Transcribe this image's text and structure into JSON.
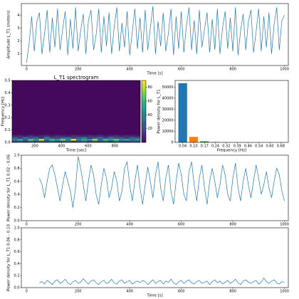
{
  "chart_data": [
    {
      "type": "line",
      "ylabel": "Amplitude L_T1 (meters)",
      "xlabel": "Time [s]",
      "color": "#1f77b4",
      "xlim": [
        -20,
        1015
      ],
      "ylim": [
        0.1,
        4.9
      ],
      "xticks": [
        0,
        200,
        400,
        600,
        800,
        1000
      ],
      "yticks": [
        1,
        2,
        3,
        4
      ],
      "x": [
        0,
        10,
        20,
        30,
        40,
        50,
        60,
        70,
        80,
        90,
        100,
        110,
        120,
        130,
        140,
        150,
        160,
        170,
        180,
        190,
        200,
        210,
        220,
        230,
        240,
        250,
        260,
        270,
        280,
        290,
        300,
        310,
        320,
        330,
        340,
        350,
        360,
        370,
        380,
        390,
        400,
        410,
        420,
        430,
        440,
        450,
        460,
        470,
        480,
        490,
        500,
        510,
        520,
        530,
        540,
        550,
        560,
        570,
        580,
        590,
        600,
        610,
        620,
        630,
        640,
        650,
        660,
        670,
        680,
        690,
        700,
        710,
        720,
        730,
        740,
        750,
        760,
        770,
        780,
        790,
        800,
        810,
        820,
        830,
        840,
        850,
        860,
        870,
        880,
        890,
        900,
        910,
        920,
        930,
        940,
        950,
        960,
        970,
        980,
        990,
        1000
      ],
      "values": [
        0.3,
        1.8,
        3.9,
        1.2,
        3.5,
        4.2,
        1.0,
        2.6,
        4.4,
        1.1,
        3.8,
        1.5,
        4.5,
        1.3,
        2.9,
        4.3,
        0.9,
        3.7,
        1.4,
        4.6,
        1.2,
        2.8,
        4.1,
        1.0,
        3.6,
        4.4,
        1.3,
        2.5,
        4.5,
        1.1,
        3.9,
        1.6,
        4.2,
        1.0,
        3.1,
        4.6,
        1.2,
        3.4,
        1.5,
        4.3,
        0.9,
        2.7,
        4.5,
        1.4,
        3.8,
        1.1,
        4.4,
        1.3,
        3.0,
        4.7,
        1.0,
        3.5,
        1.6,
        4.2,
        1.2,
        2.6,
        4.5,
        0.9,
        3.9,
        1.4,
        4.3,
        1.1,
        3.2,
        4.6,
        1.3,
        3.6,
        1.0,
        4.4,
        1.5,
        2.9,
        4.2,
        1.1,
        3.7,
        1.3,
        4.5,
        1.0,
        3.0,
        4.3,
        1.4,
        3.8,
        1.2,
        4.6,
        0.9,
        2.8,
        4.1,
        1.3,
        3.5,
        4.4,
        1.1,
        2.7,
        4.5,
        1.2,
        3.9,
        1.5,
        4.2,
        1.0,
        3.3,
        4.6,
        1.3,
        3.6,
        4.0
      ]
    },
    {
      "type": "heatmap",
      "title": "L_T1 spectrogram",
      "ylabel": "Frequency [Hz]",
      "xlabel": "Time [sec]",
      "colormap": "viridis",
      "xlim": [
        30,
        990
      ],
      "ylim": [
        0,
        0.5
      ],
      "xticks": [
        200,
        400,
        600,
        800
      ],
      "yticks": [
        {
          "value": 0,
          "label": "0.0"
        },
        0.1,
        0.2,
        0.3,
        0.4,
        0.5
      ],
      "zlim": [
        0,
        90
      ],
      "zticks": [
        20,
        40,
        60,
        80
      ],
      "xbins": [
        30,
        70,
        110,
        150,
        190,
        230,
        270,
        310,
        350,
        390,
        430,
        470,
        510,
        550,
        590,
        630,
        670,
        710,
        750,
        790,
        830,
        870,
        910,
        950,
        990
      ],
      "ybins": [
        0,
        0.015,
        0.03,
        0.045,
        0.06,
        0.5
      ],
      "z": [
        [
          15,
          20,
          12,
          25,
          18,
          22,
          14,
          28,
          16,
          20,
          24,
          13,
          19,
          26,
          15,
          21,
          17,
          23,
          12,
          27,
          18,
          14,
          22,
          16
        ],
        [
          40,
          55,
          30,
          65,
          45,
          80,
          35,
          60,
          50,
          70,
          42,
          85,
          38,
          58,
          48,
          75,
          33,
          62,
          52,
          68,
          44,
          57,
          36,
          50
        ],
        [
          25,
          15,
          35,
          20,
          30,
          12,
          40,
          22,
          18,
          28,
          33,
          16,
          26,
          38,
          14,
          24,
          30,
          19,
          36,
          21,
          27,
          13,
          29,
          23
        ],
        [
          8,
          10,
          6,
          12,
          7,
          9,
          11,
          5,
          10,
          8,
          6,
          12,
          9,
          7,
          11,
          8,
          10,
          6,
          9,
          12,
          7,
          10,
          8,
          6
        ],
        [
          2,
          2,
          2,
          2,
          2,
          2,
          2,
          2,
          2,
          2,
          2,
          2,
          2,
          2,
          2,
          2,
          2,
          2,
          2,
          2,
          2,
          2,
          2,
          2
        ]
      ]
    },
    {
      "type": "bar",
      "ylabel": "Power density for L_T1",
      "xlabel": "Frequency [Hz]",
      "categories": [
        "0.04",
        "0.10",
        "0.17",
        "0.24",
        "0.32",
        "0.39",
        "0.46",
        "0.54",
        "0.60",
        "0.68"
      ],
      "values": [
        53500,
        5000,
        1000,
        300,
        150,
        100,
        80,
        60,
        50,
        40
      ],
      "colors": [
        "#1f77b4",
        "#ff7f0e",
        "#2ca02c",
        "#d62728",
        "#9467bd",
        "#8c564b",
        "#e377c2",
        "#7f7f7f",
        "#bcbd22",
        "#17becf"
      ],
      "ylim": [
        0,
        56000
      ],
      "yticks": [
        0,
        10000,
        20000,
        30000,
        40000,
        50000
      ]
    },
    {
      "type": "line",
      "ylabel": "Power density for L_T1 0.02 - 0.06",
      "color": "#1f77b4",
      "xlim": [
        -20,
        1015
      ],
      "ylim": [
        0,
        1
      ],
      "xticks": [
        0,
        200,
        400,
        600,
        800,
        1000
      ],
      "yticks": [
        {
          "value": 0,
          "label": "0.0"
        },
        0.2,
        0.4,
        0.6,
        0.8,
        {
          "value": 1,
          "label": "1.0"
        }
      ],
      "x": [
        50,
        60,
        70,
        80,
        90,
        100,
        110,
        120,
        130,
        140,
        150,
        160,
        170,
        180,
        190,
        200,
        210,
        220,
        230,
        240,
        250,
        260,
        270,
        280,
        290,
        300,
        310,
        320,
        330,
        340,
        350,
        360,
        370,
        380,
        390,
        400,
        410,
        420,
        430,
        440,
        450,
        460,
        470,
        480,
        490,
        500,
        510,
        520,
        530,
        540,
        550,
        560,
        570,
        580,
        590,
        600,
        610,
        620,
        630,
        640,
        650,
        660,
        670,
        680,
        690,
        700,
        710,
        720,
        730,
        740,
        750,
        760,
        770,
        780,
        790,
        800,
        810,
        820,
        830,
        840,
        850,
        860,
        870,
        880,
        890,
        900,
        910,
        920,
        930,
        940,
        950,
        960,
        970,
        980,
        990,
        1000
      ],
      "values": [
        0.65,
        0.55,
        0.35,
        0.6,
        0.8,
        0.85,
        0.7,
        0.5,
        0.3,
        0.55,
        0.75,
        0.6,
        0.45,
        0.2,
        0.5,
        0.98,
        0.8,
        0.55,
        0.3,
        0.6,
        0.85,
        0.7,
        0.4,
        0.25,
        0.55,
        0.8,
        0.65,
        0.35,
        0.5,
        0.75,
        0.6,
        0.3,
        0.45,
        0.8,
        0.9,
        0.55,
        0.3,
        0.6,
        0.85,
        0.5,
        0.25,
        0.55,
        0.82,
        0.6,
        0.35,
        0.7,
        0.9,
        0.5,
        0.3,
        0.65,
        0.85,
        0.45,
        0.25,
        0.6,
        0.88,
        0.7,
        0.4,
        0.3,
        0.75,
        0.9,
        0.55,
        0.3,
        0.65,
        0.85,
        0.5,
        0.25,
        0.6,
        0.8,
        0.6,
        0.35,
        0.55,
        0.85,
        0.7,
        0.4,
        0.3,
        0.65,
        0.88,
        0.5,
        0.3,
        0.6,
        0.8,
        0.55,
        0.35,
        0.6,
        0.85,
        0.65,
        0.4,
        0.55,
        0.75,
        0.5,
        0.35,
        0.6,
        0.8,
        0.7,
        0.45,
        0.3
      ]
    },
    {
      "type": "line",
      "ylabel": "Power density for L_T1 0.06 - 0.10",
      "xlabel": "Time [s]",
      "color": "#1f77b4",
      "xlim": [
        -20,
        1015
      ],
      "ylim": [
        0,
        1
      ],
      "xticks": [
        0,
        200,
        400,
        600,
        800,
        1000
      ],
      "yticks": [
        {
          "value": 0,
          "label": "0.0"
        },
        0.2,
        0.4,
        0.6,
        0.8,
        {
          "value": 1,
          "label": "1.0"
        }
      ],
      "x": [
        50,
        60,
        70,
        80,
        90,
        100,
        110,
        120,
        130,
        140,
        150,
        160,
        170,
        180,
        190,
        200,
        210,
        220,
        230,
        240,
        250,
        260,
        270,
        280,
        290,
        300,
        310,
        320,
        330,
        340,
        350,
        360,
        370,
        380,
        390,
        400,
        410,
        420,
        430,
        440,
        450,
        460,
        470,
        480,
        490,
        500,
        510,
        520,
        530,
        540,
        550,
        560,
        570,
        580,
        590,
        600,
        610,
        620,
        630,
        640,
        650,
        660,
        670,
        680,
        690,
        700,
        710,
        720,
        730,
        740,
        750,
        760,
        770,
        780,
        790,
        800,
        810,
        820,
        830,
        840,
        850,
        860,
        870,
        880,
        890,
        900,
        910,
        920,
        930,
        940,
        950,
        960,
        970,
        980,
        990,
        1000
      ],
      "values": [
        0.08,
        0.1,
        0.06,
        0.12,
        0.09,
        0.05,
        0.11,
        0.13,
        0.07,
        0.1,
        0.14,
        0.08,
        0.05,
        0.1,
        0.12,
        0.07,
        0.09,
        0.15,
        0.1,
        0.06,
        0.11,
        0.13,
        0.08,
        0.05,
        0.1,
        0.12,
        0.07,
        0.09,
        0.14,
        0.08,
        0.06,
        0.11,
        0.13,
        0.07,
        0.1,
        0.12,
        0.06,
        0.09,
        0.11,
        0.08,
        0.12,
        0.1,
        0.05,
        0.09,
        0.13,
        0.07,
        0.1,
        0.12,
        0.06,
        0.11,
        0.09,
        0.14,
        0.08,
        0.05,
        0.1,
        0.12,
        0.07,
        0.11,
        0.13,
        0.08,
        0.06,
        0.1,
        0.12,
        0.07,
        0.09,
        0.11,
        0.05,
        0.1,
        0.13,
        0.08,
        0.11,
        0.06,
        0.09,
        0.12,
        0.07,
        0.1,
        0.14,
        0.08,
        0.05,
        0.11,
        0.13,
        0.09,
        0.07,
        0.1,
        0.12,
        0.06,
        0.09,
        0.16,
        0.1,
        0.07,
        0.11,
        0.13,
        0.08,
        0.06,
        0.1,
        0.09
      ]
    }
  ]
}
